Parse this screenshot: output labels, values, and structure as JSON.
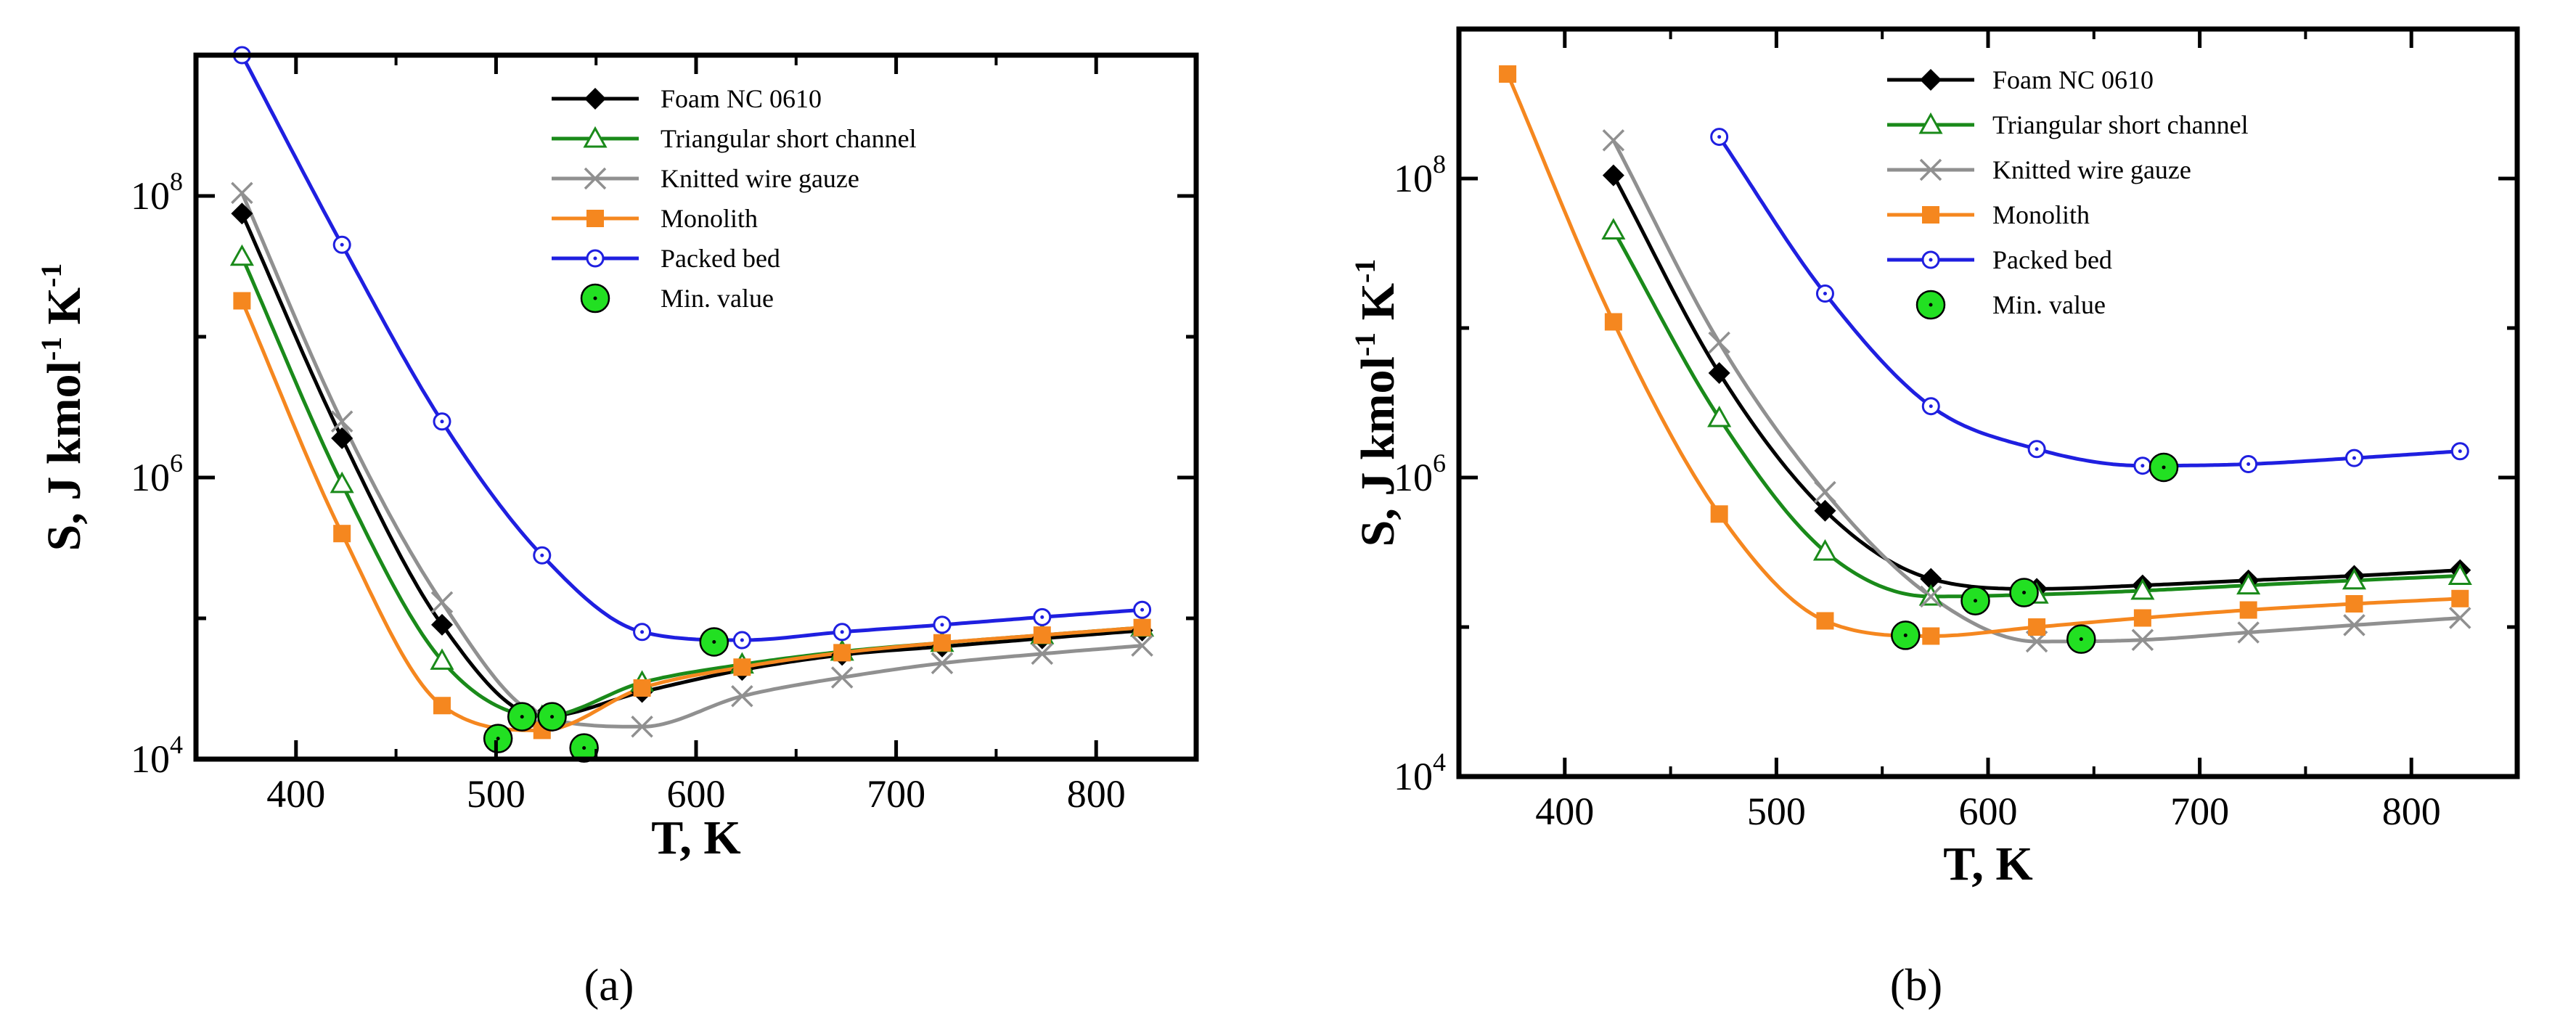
{
  "figure": {
    "panel_labels": [
      "(a)",
      "(b)"
    ]
  },
  "chart_data": [
    {
      "panel": "(a)",
      "type": "line",
      "xlabel": "T, K",
      "ylabel": "S, J kmol-1 K-1",
      "yscale": "log",
      "xlim": [
        350,
        850
      ],
      "ylim": [
        10000,
        1000000000
      ],
      "xticks": [
        400,
        500,
        600,
        700,
        800
      ],
      "yticks": [
        10000,
        1000000,
        100000000
      ],
      "ytick_labels": [
        [
          "10",
          "4"
        ],
        [
          "10",
          "6"
        ],
        [
          "10",
          "8"
        ]
      ],
      "legend_position": "top-right",
      "series": [
        {
          "name": "Foam NC 0610",
          "color": "#000000",
          "marker": "diamond",
          "x": [
            373,
            423,
            473,
            523,
            573,
            623,
            673,
            723,
            773,
            823
          ],
          "y": [
            75000000,
            1900000,
            90000,
            20000,
            30000,
            43000,
            55000,
            63000,
            72000,
            82000
          ]
        },
        {
          "name": "Triangular short channel",
          "color": "#1a8a1a",
          "marker": "open-triangle",
          "x": [
            373,
            423,
            473,
            523,
            573,
            623,
            673,
            723,
            773,
            823
          ],
          "y": [
            37000000,
            900000,
            50000,
            20000,
            35000,
            47000,
            58000,
            67000,
            76000,
            86000
          ]
        },
        {
          "name": "Knitted wire gauze",
          "color": "#909090",
          "marker": "x",
          "x": [
            373,
            423,
            473,
            523,
            573,
            623,
            673,
            723,
            773,
            823
          ],
          "y": [
            105000000,
            2500000,
            130000,
            20000,
            17000,
            28000,
            38000,
            48000,
            56000,
            64000
          ]
        },
        {
          "name": "Monolith",
          "color": "#f5871f",
          "marker": "square",
          "x": [
            373,
            423,
            473,
            523,
            573,
            623,
            673,
            723,
            773,
            823
          ],
          "y": [
            18000000,
            400000,
            24000,
            16000,
            32000,
            45000,
            57000,
            67000,
            76000,
            86000
          ]
        },
        {
          "name": "Packed bed",
          "color": "#1f1fe0",
          "marker": "open-circle-dot",
          "x": [
            373,
            423,
            473,
            523,
            573,
            623,
            673,
            723,
            773,
            823
          ],
          "y": [
            1000000000,
            45000000,
            2500000,
            280000,
            80000,
            70000,
            80000,
            90000,
            102000,
            115000
          ]
        },
        {
          "name": "Min. value",
          "color": "#22e022",
          "marker": "filled-circle-dot",
          "line": false,
          "x": [
            501,
            513,
            528,
            544,
            609
          ],
          "y": [
            14000,
            20000,
            20000,
            12000,
            68000
          ]
        }
      ]
    },
    {
      "panel": "(b)",
      "type": "line",
      "xlabel": "T, K",
      "ylabel": "S, J kmol-1 K-1",
      "yscale": "log",
      "xlim": [
        350,
        850
      ],
      "ylim": [
        10000,
        1000000000
      ],
      "xticks": [
        400,
        500,
        600,
        700,
        800
      ],
      "yticks": [
        10000,
        1000000,
        100000000
      ],
      "ytick_labels": [
        [
          "10",
          "4"
        ],
        [
          "10",
          "6"
        ],
        [
          "10",
          "8"
        ]
      ],
      "legend_position": "top-right",
      "series": [
        {
          "name": "Foam NC 0610",
          "color": "#000000",
          "marker": "diamond",
          "x": [
            423,
            473,
            523,
            573,
            623,
            673,
            723,
            773,
            823
          ],
          "y": [
            105000000,
            5000000,
            600000,
            210000,
            180000,
            190000,
            205000,
            220000,
            240000
          ]
        },
        {
          "name": "Triangular short channel",
          "color": "#1a8a1a",
          "marker": "open-triangle",
          "x": [
            423,
            473,
            523,
            573,
            623,
            673,
            723,
            773,
            823
          ],
          "y": [
            45000000,
            2500000,
            320000,
            160000,
            165000,
            175000,
            190000,
            205000,
            220000
          ]
        },
        {
          "name": "Knitted wire gauze",
          "color": "#909090",
          "marker": "x",
          "x": [
            423,
            473,
            523,
            573,
            623,
            673,
            723,
            773,
            823
          ],
          "y": [
            180000000,
            8000000,
            800000,
            160000,
            80000,
            82000,
            92000,
            103000,
            115000
          ]
        },
        {
          "name": "Monolith",
          "color": "#f5871f",
          "marker": "square",
          "x": [
            373,
            423,
            473,
            523,
            573,
            623,
            673,
            723,
            773,
            823
          ],
          "y": [
            500000000,
            11000000,
            570000,
            110000,
            87000,
            100000,
            115000,
            130000,
            143000,
            155000
          ]
        },
        {
          "name": "Packed bed",
          "color": "#1f1fe0",
          "marker": "open-circle-dot",
          "x": [
            473,
            523,
            573,
            623,
            673,
            723,
            773,
            823
          ],
          "y": [
            190000000,
            17000000,
            3000000,
            1550000,
            1200000,
            1230000,
            1350000,
            1500000
          ]
        },
        {
          "name": "Min. value",
          "color": "#22e022",
          "marker": "filled-circle-dot",
          "line": false,
          "x": [
            561,
            594,
            617,
            644,
            683
          ],
          "y": [
            88000,
            150000,
            170000,
            83000,
            1170000
          ]
        }
      ]
    }
  ]
}
